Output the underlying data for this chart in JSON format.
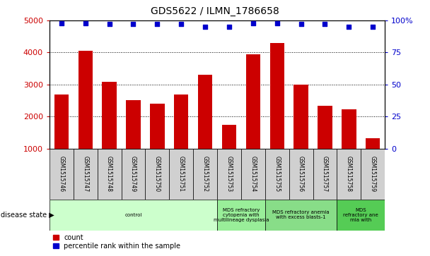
{
  "title": "GDS5622 / ILMN_1786658",
  "samples": [
    "GSM1515746",
    "GSM1515747",
    "GSM1515748",
    "GSM1515749",
    "GSM1515750",
    "GSM1515751",
    "GSM1515752",
    "GSM1515753",
    "GSM1515754",
    "GSM1515755",
    "GSM1515756",
    "GSM1515757",
    "GSM1515758",
    "GSM1515759"
  ],
  "counts": [
    2680,
    4050,
    3080,
    2500,
    2390,
    2680,
    3300,
    1750,
    3950,
    4300,
    3000,
    2340,
    2220,
    1330
  ],
  "percentile_ranks": [
    98,
    98,
    97,
    97,
    97,
    97,
    95,
    95,
    98,
    98,
    97,
    97,
    95,
    95
  ],
  "bar_color": "#cc0000",
  "dot_color": "#0000cc",
  "ylim_left": [
    1000,
    5000
  ],
  "ylim_right": [
    0,
    100
  ],
  "yticks_left": [
    1000,
    2000,
    3000,
    4000,
    5000
  ],
  "yticks_right": [
    0,
    25,
    50,
    75,
    100
  ],
  "disease_groups": [
    {
      "label": "control",
      "start": 0,
      "end": 7,
      "color": "#ccffcc"
    },
    {
      "label": "MDS refractory\ncytopenia with\nmultilineage dysplasia",
      "start": 7,
      "end": 9,
      "color": "#99ee99"
    },
    {
      "label": "MDS refractory anemia\nwith excess blasts-1",
      "start": 9,
      "end": 12,
      "color": "#88dd88"
    },
    {
      "label": "MDS\nrefractory ane\nmia with",
      "start": 12,
      "end": 14,
      "color": "#55cc55"
    }
  ],
  "disease_state_label": "disease state",
  "legend_count_label": "count",
  "legend_percentile_label": "percentile rank within the sample",
  "tick_label_color_left": "#cc0000",
  "tick_label_color_right": "#0000cc",
  "grid_color": "#000000",
  "background_color": "#ffffff",
  "sample_box_color": "#d0d0d0"
}
